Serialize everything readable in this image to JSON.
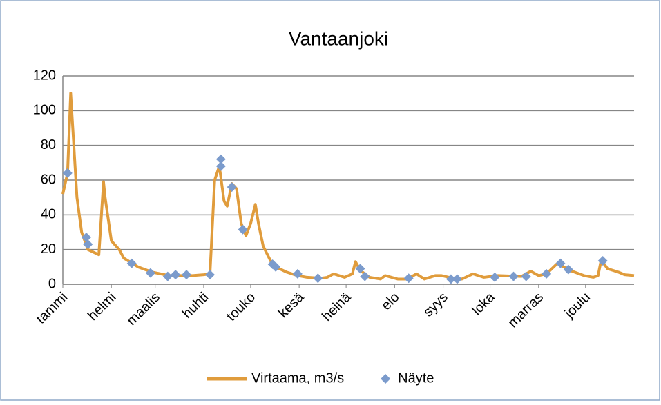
{
  "chart_data": {
    "type": "line",
    "title": "Vantaanjoki",
    "xlim": [
      0,
      365
    ],
    "xticks": [
      {
        "value": 0,
        "label": "tammi"
      },
      {
        "value": 31,
        "label": "helmi"
      },
      {
        "value": 59,
        "label": "maalis"
      },
      {
        "value": 90,
        "label": "huhti"
      },
      {
        "value": 120,
        "label": "touko"
      },
      {
        "value": 151,
        "label": "kesä"
      },
      {
        "value": 181,
        "label": "heinä"
      },
      {
        "value": 212,
        "label": "elo"
      },
      {
        "value": 243,
        "label": "syys"
      },
      {
        "value": 273,
        "label": "loka"
      },
      {
        "value": 304,
        "label": "marras"
      },
      {
        "value": 334,
        "label": "joulu"
      }
    ],
    "ylim": [
      0,
      120
    ],
    "yticks": [
      0,
      20,
      40,
      60,
      80,
      100,
      120
    ],
    "grid": true,
    "legend": "bottom",
    "series": [
      {
        "name": "Virtaama, m3/s",
        "type": "line",
        "color": "#e09c3c",
        "x": [
          0,
          3,
          5,
          7,
          9,
          12,
          16,
          23,
          26,
          27,
          31,
          36,
          39,
          48,
          57,
          68,
          83,
          90,
          94,
          97,
          100,
          103,
          105,
          108,
          111,
          114,
          117,
          120,
          123,
          125,
          128,
          133,
          136,
          143,
          150,
          156,
          165,
          169,
          173,
          180,
          185,
          187,
          190,
          196,
          203,
          206,
          214,
          220,
          226,
          231,
          238,
          242,
          249,
          255,
          262,
          269,
          278,
          293,
          299,
          304,
          309,
          316,
          324,
          333,
          339,
          342,
          344,
          348,
          355,
          359,
          365
        ],
        "values": [
          52,
          64,
          110,
          80,
          50,
          30,
          20,
          17,
          59,
          50,
          25,
          20,
          15,
          10,
          7,
          5,
          5,
          5.5,
          6,
          60,
          68,
          48,
          45,
          58,
          55,
          35,
          28,
          35,
          46,
          35,
          22,
          13,
          10,
          7,
          5,
          4,
          3.5,
          4,
          6,
          4,
          6,
          13,
          8,
          4,
          3,
          5,
          3,
          3,
          6,
          3,
          5,
          5,
          3.5,
          3,
          6,
          4,
          5,
          4.5,
          7.5,
          5,
          6,
          12,
          8,
          5,
          4,
          5,
          14,
          9,
          7,
          5.5,
          5
        ]
      },
      {
        "name": "Näyte",
        "type": "scatter",
        "color": "#7b9bcc",
        "x": [
          3,
          15,
          16,
          44,
          56,
          67,
          72,
          79,
          94,
          101,
          101,
          108,
          115,
          134,
          136,
          150,
          163,
          190,
          193,
          221,
          248,
          252,
          276,
          288,
          296,
          309,
          318,
          323,
          345
        ],
        "values": [
          64,
          27,
          23,
          12,
          6.5,
          4.5,
          5.5,
          5.5,
          5.5,
          72,
          68,
          56,
          31.5,
          11.5,
          10,
          6,
          3.5,
          9,
          4.5,
          3.5,
          3,
          3,
          4,
          4.5,
          4.5,
          6,
          12,
          8.5,
          13.5
        ]
      }
    ]
  }
}
